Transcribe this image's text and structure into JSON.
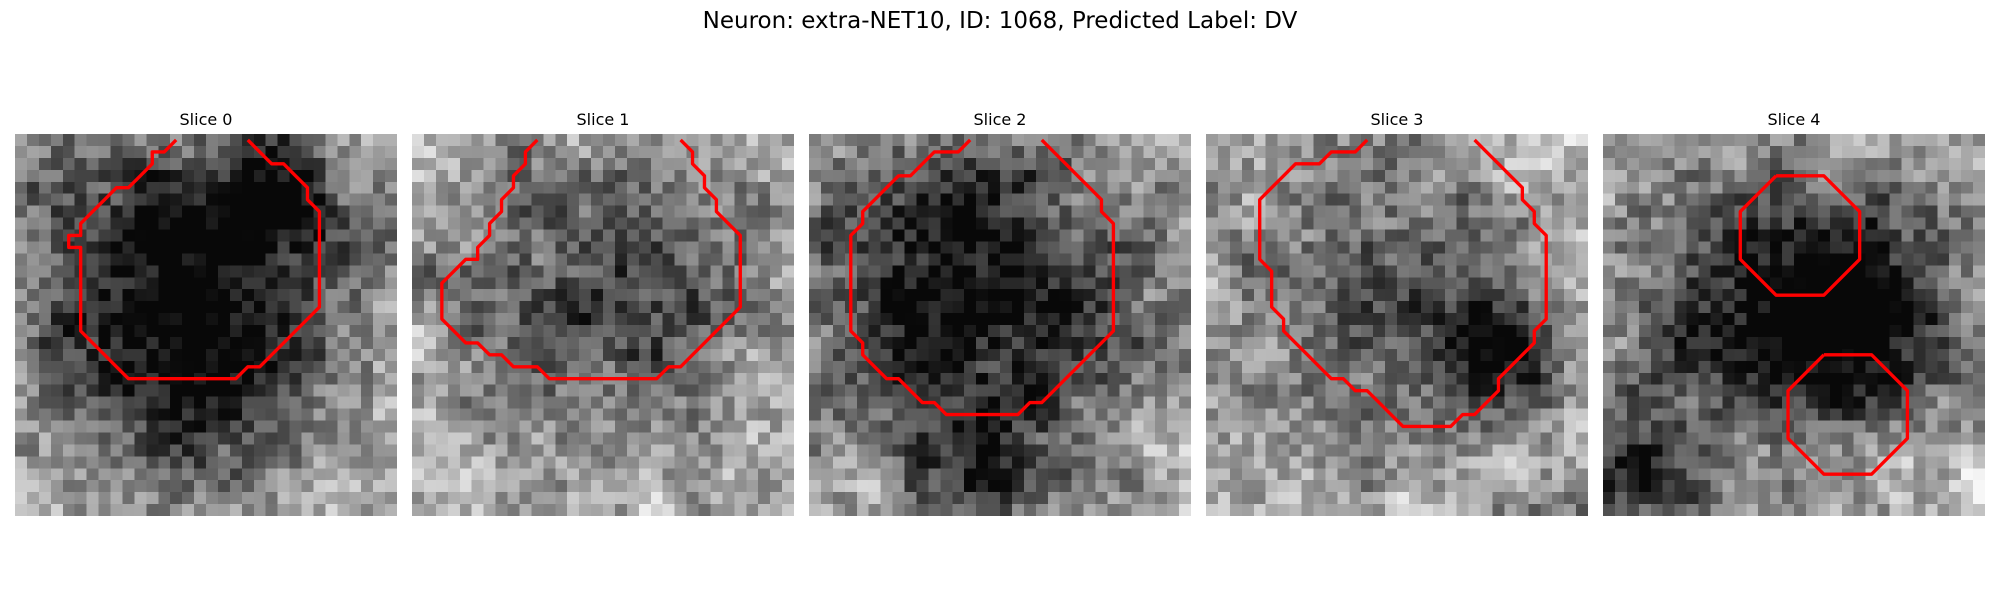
{
  "figure": {
    "title": "Neuron: extra-NET10, ID: 1068, Predicted Label: DV"
  },
  "contour_color": "#ff0000",
  "grid_size": 32,
  "slices": [
    {
      "title": "Slice 0",
      "seed": 11,
      "blobs": [
        [
          14,
          11,
          10,
          0.65
        ],
        [
          22,
          5,
          3,
          0.5
        ],
        [
          14,
          20,
          6,
          0.3
        ]
      ],
      "contours": [
        [
          [
            13,
            0
          ],
          [
            12,
            1
          ],
          [
            11,
            1
          ],
          [
            11,
            2
          ],
          [
            10,
            3
          ],
          [
            9,
            4
          ],
          [
            8,
            4
          ],
          [
            7,
            5
          ],
          [
            6,
            6
          ],
          [
            5,
            7
          ],
          [
            5,
            8
          ],
          [
            4,
            8
          ],
          [
            4,
            9
          ],
          [
            5,
            9
          ],
          [
            5,
            10
          ],
          [
            5,
            11
          ],
          [
            5,
            12
          ],
          [
            5,
            13
          ],
          [
            5,
            14
          ],
          [
            5,
            15
          ],
          [
            5,
            16
          ],
          [
            6,
            17
          ],
          [
            7,
            18
          ],
          [
            8,
            19
          ],
          [
            9,
            20
          ],
          [
            10,
            20
          ],
          [
            11,
            20
          ],
          [
            12,
            20
          ],
          [
            13,
            20
          ],
          [
            14,
            20
          ],
          [
            15,
            20
          ],
          [
            16,
            20
          ],
          [
            17,
            20
          ],
          [
            18,
            20
          ],
          [
            19,
            19
          ],
          [
            20,
            19
          ],
          [
            21,
            18
          ],
          [
            22,
            17
          ],
          [
            23,
            16
          ],
          [
            24,
            15
          ],
          [
            25,
            14
          ],
          [
            25,
            13
          ],
          [
            25,
            12
          ],
          [
            25,
            11
          ],
          [
            25,
            10
          ],
          [
            25,
            9
          ],
          [
            25,
            8
          ],
          [
            25,
            7
          ],
          [
            25,
            6
          ],
          [
            24,
            5
          ],
          [
            24,
            4
          ],
          [
            23,
            3
          ],
          [
            22,
            2
          ],
          [
            21,
            2
          ],
          [
            20,
            1
          ],
          [
            19,
            0
          ]
        ]
      ]
    },
    {
      "title": "Slice 1",
      "seed": 23,
      "blobs": [
        [
          15,
          13,
          9,
          0.45
        ]
      ],
      "contours": [
        [
          [
            10,
            0
          ],
          [
            9,
            1
          ],
          [
            9,
            2
          ],
          [
            8,
            3
          ],
          [
            8,
            4
          ],
          [
            7,
            5
          ],
          [
            7,
            6
          ],
          [
            6,
            7
          ],
          [
            6,
            8
          ],
          [
            5,
            9
          ],
          [
            5,
            10
          ],
          [
            4,
            10
          ],
          [
            3,
            11
          ],
          [
            2,
            12
          ],
          [
            2,
            13
          ],
          [
            2,
            14
          ],
          [
            2,
            15
          ],
          [
            3,
            16
          ],
          [
            4,
            17
          ],
          [
            5,
            17
          ],
          [
            6,
            18
          ],
          [
            7,
            18
          ],
          [
            8,
            19
          ],
          [
            9,
            19
          ],
          [
            10,
            19
          ],
          [
            11,
            20
          ],
          [
            12,
            20
          ],
          [
            13,
            20
          ],
          [
            14,
            20
          ],
          [
            15,
            20
          ],
          [
            16,
            20
          ],
          [
            17,
            20
          ],
          [
            18,
            20
          ],
          [
            19,
            20
          ],
          [
            20,
            20
          ],
          [
            21,
            19
          ],
          [
            22,
            19
          ],
          [
            23,
            18
          ],
          [
            24,
            17
          ],
          [
            25,
            16
          ],
          [
            26,
            15
          ],
          [
            27,
            14
          ],
          [
            27,
            13
          ],
          [
            27,
            12
          ],
          [
            27,
            11
          ],
          [
            27,
            10
          ],
          [
            27,
            9
          ],
          [
            27,
            8
          ],
          [
            26,
            7
          ],
          [
            25,
            6
          ],
          [
            25,
            5
          ],
          [
            24,
            4
          ],
          [
            24,
            3
          ],
          [
            23,
            2
          ],
          [
            23,
            1
          ],
          [
            22,
            0
          ]
        ]
      ]
    },
    {
      "title": "Slice 2",
      "seed": 37,
      "blobs": [
        [
          13,
          13,
          10,
          0.7
        ],
        [
          14,
          28,
          4,
          0.4
        ]
      ],
      "contours": [
        [
          [
            13,
            0
          ],
          [
            12,
            1
          ],
          [
            11,
            1
          ],
          [
            10,
            1
          ],
          [
            9,
            2
          ],
          [
            8,
            3
          ],
          [
            7,
            3
          ],
          [
            6,
            4
          ],
          [
            5,
            5
          ],
          [
            4,
            6
          ],
          [
            4,
            7
          ],
          [
            3,
            8
          ],
          [
            3,
            9
          ],
          [
            3,
            10
          ],
          [
            3,
            11
          ],
          [
            3,
            12
          ],
          [
            3,
            13
          ],
          [
            3,
            14
          ],
          [
            3,
            15
          ],
          [
            3,
            16
          ],
          [
            4,
            17
          ],
          [
            4,
            18
          ],
          [
            5,
            19
          ],
          [
            6,
            20
          ],
          [
            7,
            20
          ],
          [
            8,
            21
          ],
          [
            9,
            22
          ],
          [
            10,
            22
          ],
          [
            11,
            23
          ],
          [
            12,
            23
          ],
          [
            13,
            23
          ],
          [
            14,
            23
          ],
          [
            15,
            23
          ],
          [
            16,
            23
          ],
          [
            17,
            23
          ],
          [
            18,
            22
          ],
          [
            19,
            22
          ],
          [
            20,
            21
          ],
          [
            21,
            20
          ],
          [
            22,
            19
          ],
          [
            23,
            18
          ],
          [
            24,
            17
          ],
          [
            25,
            16
          ],
          [
            25,
            15
          ],
          [
            25,
            14
          ],
          [
            25,
            13
          ],
          [
            25,
            12
          ],
          [
            25,
            11
          ],
          [
            25,
            10
          ],
          [
            25,
            9
          ],
          [
            25,
            8
          ],
          [
            25,
            7
          ],
          [
            24,
            6
          ],
          [
            24,
            5
          ],
          [
            23,
            4
          ],
          [
            22,
            3
          ],
          [
            21,
            2
          ],
          [
            20,
            1
          ],
          [
            19,
            0
          ]
        ]
      ]
    },
    {
      "title": "Slice 3",
      "seed": 53,
      "blobs": [
        [
          14,
          14,
          9,
          0.4
        ],
        [
          24,
          18,
          3,
          0.6
        ]
      ],
      "contours": [
        [
          [
            13,
            0
          ],
          [
            12,
            1
          ],
          [
            11,
            1
          ],
          [
            10,
            1
          ],
          [
            9,
            2
          ],
          [
            8,
            2
          ],
          [
            7,
            2
          ],
          [
            6,
            3
          ],
          [
            5,
            4
          ],
          [
            4,
            5
          ],
          [
            4,
            6
          ],
          [
            4,
            7
          ],
          [
            4,
            8
          ],
          [
            4,
            9
          ],
          [
            4,
            10
          ],
          [
            5,
            11
          ],
          [
            5,
            12
          ],
          [
            5,
            13
          ],
          [
            5,
            14
          ],
          [
            6,
            15
          ],
          [
            6,
            16
          ],
          [
            7,
            17
          ],
          [
            8,
            18
          ],
          [
            9,
            19
          ],
          [
            10,
            20
          ],
          [
            11,
            20
          ],
          [
            12,
            21
          ],
          [
            13,
            21
          ],
          [
            14,
            22
          ],
          [
            15,
            23
          ],
          [
            16,
            24
          ],
          [
            17,
            24
          ],
          [
            18,
            24
          ],
          [
            19,
            24
          ],
          [
            20,
            24
          ],
          [
            21,
            23
          ],
          [
            22,
            23
          ],
          [
            23,
            22
          ],
          [
            24,
            21
          ],
          [
            24,
            20
          ],
          [
            25,
            19
          ],
          [
            26,
            18
          ],
          [
            27,
            17
          ],
          [
            27,
            16
          ],
          [
            28,
            15
          ],
          [
            28,
            14
          ],
          [
            28,
            13
          ],
          [
            28,
            12
          ],
          [
            28,
            11
          ],
          [
            28,
            10
          ],
          [
            28,
            9
          ],
          [
            28,
            8
          ],
          [
            27,
            7
          ],
          [
            27,
            6
          ],
          [
            26,
            5
          ],
          [
            26,
            4
          ],
          [
            25,
            3
          ],
          [
            24,
            2
          ],
          [
            23,
            1
          ],
          [
            22,
            0
          ]
        ]
      ]
    },
    {
      "title": "Slice 4",
      "seed": 71,
      "blobs": [
        [
          12,
          14,
          8,
          0.55
        ],
        [
          22,
          15,
          6,
          0.6
        ],
        [
          3,
          28,
          4,
          0.5
        ]
      ],
      "contours": [
        [
          [
            14,
            3
          ],
          [
            18,
            3
          ],
          [
            21,
            6
          ],
          [
            21,
            10
          ],
          [
            18,
            13
          ],
          [
            14,
            13
          ],
          [
            11,
            10
          ],
          [
            11,
            6
          ]
        ],
        [
          [
            18,
            18
          ],
          [
            22,
            18
          ],
          [
            25,
            21
          ],
          [
            25,
            25
          ],
          [
            22,
            28
          ],
          [
            18,
            28
          ],
          [
            15,
            25
          ],
          [
            15,
            21
          ]
        ]
      ]
    }
  ]
}
